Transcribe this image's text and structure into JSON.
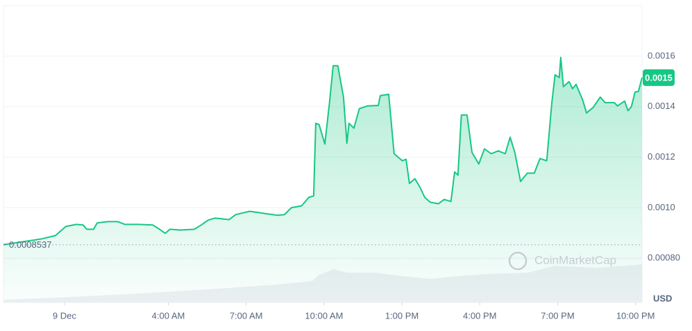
{
  "chart_data": {
    "type": "line",
    "color": "#16c784",
    "x": [
      -2.35,
      -0.88,
      -0.35,
      0.05,
      0.45,
      0.72,
      0.86,
      1.12,
      1.26,
      1.66,
      2.06,
      2.33,
      2.86,
      3.4,
      3.66,
      3.88,
      4.06,
      4.47,
      5.0,
      5.27,
      5.53,
      5.8,
      6.34,
      6.6,
      7.14,
      7.67,
      8.21,
      8.48,
      8.74,
      9.14,
      9.41,
      9.6,
      9.68,
      9.81,
      10.03,
      10.21,
      10.35,
      10.53,
      10.75,
      10.88,
      10.96,
      11.15,
      11.36,
      11.68,
      12.09,
      12.17,
      12.49,
      12.7,
      13.02,
      13.16,
      13.29,
      13.5,
      13.69,
      13.88,
      14.09,
      14.41,
      14.63,
      14.89,
      15.03,
      15.16,
      15.29,
      15.51,
      15.7,
      15.96,
      16.18,
      16.44,
      16.71,
      16.98,
      17.17,
      17.35,
      17.57,
      17.83,
      18.1,
      18.32,
      18.58,
      18.77,
      18.9,
      19.06,
      19.12,
      19.22,
      19.44,
      19.57,
      19.71,
      19.97,
      20.11,
      20.37,
      20.64,
      20.83,
      21.18,
      21.31,
      21.58,
      21.71,
      21.84,
      21.98,
      22.11,
      22.25
    ],
    "values": [
      0.000854,
      0.000877,
      0.00089,
      0.000926,
      0.000934,
      0.000932,
      0.000915,
      0.000915,
      0.00094,
      0.000945,
      0.000945,
      0.000934,
      0.000934,
      0.000932,
      0.000915,
      0.000899,
      0.000915,
      0.000912,
      0.000915,
      0.000932,
      0.000951,
      0.000959,
      0.000953,
      0.000973,
      0.000986,
      0.000978,
      0.00097,
      0.000973,
      0.001,
      0.001008,
      0.001041,
      0.001047,
      0.001334,
      0.001329,
      0.001252,
      0.001416,
      0.001562,
      0.001562,
      0.001438,
      0.001255,
      0.001334,
      0.001315,
      0.001392,
      0.001403,
      0.001405,
      0.001444,
      0.001449,
      0.001214,
      0.001186,
      0.001192,
      0.001096,
      0.001115,
      0.001082,
      0.001041,
      0.001022,
      0.001016,
      0.001033,
      0.001025,
      0.001142,
      0.001129,
      0.001367,
      0.001367,
      0.001219,
      0.001173,
      0.001233,
      0.001214,
      0.001225,
      0.001214,
      0.001279,
      0.001219,
      0.001104,
      0.001137,
      0.001137,
      0.001195,
      0.001186,
      0.001411,
      0.001526,
      0.001515,
      0.001595,
      0.001479,
      0.001499,
      0.001471,
      0.001488,
      0.001425,
      0.001375,
      0.001397,
      0.001438,
      0.001416,
      0.001416,
      0.001403,
      0.001422,
      0.001384,
      0.0014,
      0.001458,
      0.00146,
      0.001515
    ],
    "xlim": [
      -2.35,
      22.25
    ],
    "ylim": [
      0.000625,
      0.0018
    ],
    "xticks": [
      {
        "value": 0,
        "label": "9 Dec"
      },
      {
        "value": 4,
        "label": "4:00 AM"
      },
      {
        "value": 7,
        "label": "7:00 AM"
      },
      {
        "value": 10,
        "label": "10:00 AM"
      },
      {
        "value": 13,
        "label": "1:00 PM"
      },
      {
        "value": 16,
        "label": "4:00 PM"
      },
      {
        "value": 19,
        "label": "7:00 PM"
      },
      {
        "value": 22,
        "label": "10:00 PM"
      }
    ],
    "yticks": [
      {
        "value": 0.0008,
        "label": "0.00080"
      },
      {
        "value": 0.001,
        "label": "0.0010"
      },
      0.0012,
      0.0014,
      0.0016
    ],
    "grid": true,
    "reference": 0.0008537,
    "current_price": 0.0015,
    "currency": "USD",
    "watermark": "CoinMarketCap"
  }
}
